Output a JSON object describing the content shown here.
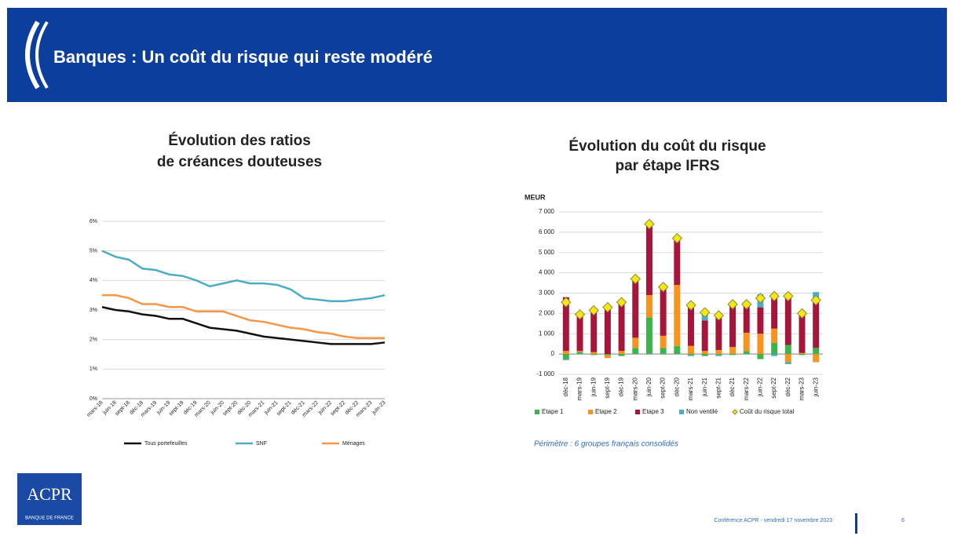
{
  "header": {
    "title": "Banques : Un coût du risque qui reste modéré"
  },
  "chart_data": [
    {
      "type": "line",
      "title": [
        "Évolution des ratios",
        "de créances douteuses"
      ],
      "categories": [
        "mars-18",
        "juin-18",
        "sept-18",
        "déc-18",
        "mars-19",
        "juin-19",
        "sept-19",
        "déc-19",
        "mars-20",
        "juin-20",
        "sept-20",
        "déc-20",
        "mars-21",
        "juin-21",
        "sept-21",
        "déc-21",
        "mars-22",
        "juin-22",
        "sept-22",
        "déc-22",
        "mars-23",
        "juin-23"
      ],
      "series": [
        {
          "name": "Tous portefeuilles",
          "color": "#111111",
          "values": [
            3.1,
            3.0,
            2.95,
            2.85,
            2.8,
            2.7,
            2.7,
            2.55,
            2.4,
            2.35,
            2.3,
            2.2,
            2.1,
            2.05,
            2.0,
            1.95,
            1.9,
            1.85,
            1.85,
            1.85,
            1.85,
            1.9
          ]
        },
        {
          "name": "SNF",
          "color": "#4bacc6",
          "values": [
            5.0,
            4.8,
            4.7,
            4.4,
            4.35,
            4.2,
            4.15,
            4.0,
            3.8,
            3.9,
            4.0,
            3.9,
            3.9,
            3.85,
            3.7,
            3.4,
            3.35,
            3.3,
            3.3,
            3.35,
            3.4,
            3.5
          ]
        },
        {
          "name": "Ménages",
          "color": "#f79646",
          "values": [
            3.5,
            3.5,
            3.4,
            3.2,
            3.2,
            3.1,
            3.1,
            2.95,
            2.95,
            2.95,
            2.8,
            2.65,
            2.6,
            2.5,
            2.4,
            2.35,
            2.25,
            2.2,
            2.1,
            2.05,
            2.05,
            2.05
          ]
        }
      ],
      "ylim": [
        0,
        6
      ],
      "yticks": [
        {
          "value": 0,
          "label": "0%"
        },
        {
          "value": 1,
          "label": "1%"
        },
        {
          "value": 2,
          "label": "2%"
        },
        {
          "value": 3,
          "label": "3%"
        },
        {
          "value": 4,
          "label": "4%"
        },
        {
          "value": 5,
          "label": "5%"
        },
        {
          "value": 6,
          "label": "6%"
        }
      ],
      "grid": true,
      "legend": "bottom"
    },
    {
      "type": "bar",
      "stacked": true,
      "title": [
        "Évolution du coût du risque",
        "par étape IFRS"
      ],
      "ylabel": "MEUR",
      "categories": [
        "déc-18",
        "mars-19",
        "juin-19",
        "sept-19",
        "déc-19",
        "mars-20",
        "juin-20",
        "sept-20",
        "déc-20",
        "mars-21",
        "juin-21",
        "sept-21",
        "déc-21",
        "mars-22",
        "juin-22",
        "sept-22",
        "déc-22",
        "mars-23",
        "juin-23"
      ],
      "series": [
        {
          "name": "Etape 1",
          "color": "#3cb44b",
          "values": [
            -250,
            100,
            -50,
            -50,
            -100,
            300,
            1800,
            300,
            400,
            -50,
            -100,
            -50,
            -50,
            150,
            -250,
            550,
            450,
            -50,
            300
          ]
        },
        {
          "name": "Etape 2",
          "color": "#f7941d",
          "values": [
            150,
            50,
            100,
            -150,
            150,
            500,
            1100,
            600,
            3000,
            400,
            150,
            200,
            350,
            900,
            1000,
            700,
            -400,
            50,
            -400
          ]
        },
        {
          "name": "Etape 3",
          "color": "#a6163a",
          "values": [
            2650,
            1800,
            2100,
            2400,
            2400,
            2900,
            3500,
            2300,
            2200,
            2100,
            1500,
            1600,
            2050,
            1400,
            1300,
            1700,
            2400,
            1950,
            2350
          ]
        },
        {
          "name": "Non ventilé",
          "color": "#4bacc6",
          "values": [
            -50,
            0,
            0,
            0,
            0,
            0,
            0,
            100,
            100,
            -50,
            400,
            -50,
            0,
            0,
            650,
            -100,
            -100,
            0,
            400
          ]
        },
        {
          "name": "Coût du risque total",
          "color": "#f5e614",
          "type": "scatter",
          "values": [
            2550,
            1950,
            2150,
            2300,
            2550,
            3700,
            6400,
            3300,
            5700,
            2400,
            2050,
            1900,
            2450,
            2450,
            2750,
            2850,
            2850,
            2000,
            2650
          ]
        }
      ],
      "ylim": [
        -1000,
        7000
      ],
      "yticks": [
        {
          "value": -1000,
          "label": "-1 000"
        },
        0,
        {
          "value": 1000,
          "label": "1 000"
        },
        {
          "value": 2000,
          "label": "2 000"
        },
        {
          "value": 3000,
          "label": "3 000"
        },
        {
          "value": 4000,
          "label": "4 000"
        },
        {
          "value": 5000,
          "label": "5 000"
        },
        {
          "value": 6000,
          "label": "6 000"
        },
        {
          "value": 7000,
          "label": "7 000"
        }
      ],
      "grid": true,
      "legend": "bottom",
      "note": "Périmètre : 6 groupes français consolidés"
    }
  ],
  "footer": {
    "logo": "ACPR",
    "logo_sub": "BANQUE DE FRANCE",
    "conference": "Conférence ACPR - vendredi 17 novembre 2023",
    "page": "6"
  }
}
